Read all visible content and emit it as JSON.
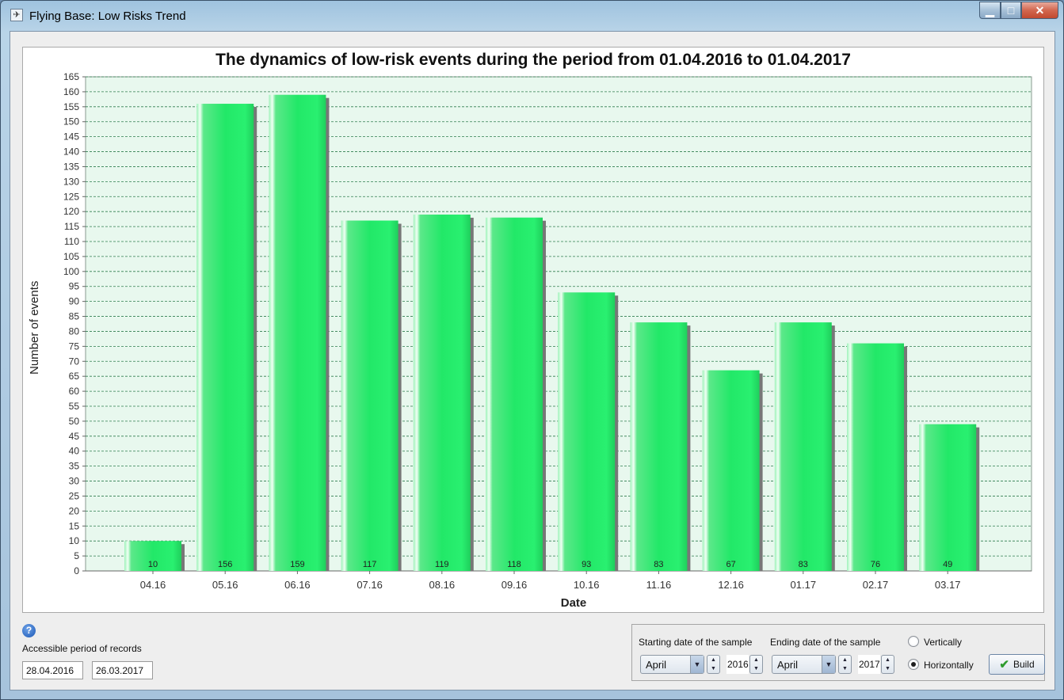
{
  "window": {
    "title": "Flying Base: Low Risks Trend",
    "app_icon": "airplane-icon",
    "minimize": "minimize-icon",
    "maximize": "maximize-icon",
    "close": "close-icon"
  },
  "chart_data": {
    "type": "bar",
    "title": "The dynamics of low-risk events during the period from 01.04.2016 to 01.04.2017",
    "xlabel": "Date",
    "ylabel": "Number of events",
    "categories": [
      "04.16",
      "05.16",
      "06.16",
      "07.16",
      "08.16",
      "09.16",
      "10.16",
      "11.16",
      "12.16",
      "01.17",
      "02.17",
      "03.17"
    ],
    "values": [
      10,
      156,
      159,
      117,
      119,
      118,
      93,
      83,
      67,
      83,
      76,
      49
    ],
    "ylim": [
      0,
      165
    ],
    "ytick_step": 5,
    "grid": true,
    "colors": {
      "bar": "#22e868",
      "bar_dark": "#12b449",
      "plot_bg": "#e8f8ee",
      "grid": "#2e7d4f"
    }
  },
  "controls": {
    "help_icon": "question-icon",
    "accessible_label": "Accessible period of records",
    "accessible_from": "28.04.2016",
    "accessible_to": "26.03.2017",
    "start_label": "Starting date of the sample",
    "end_label": "Ending date of the sample",
    "start_month": "April",
    "start_year": "2016",
    "end_month": "April",
    "end_year": "2017",
    "vertical_label": "Vertically",
    "horizontal_label": "Horizontally",
    "orientation_selected": "Horizontally",
    "build_label": "Build"
  }
}
